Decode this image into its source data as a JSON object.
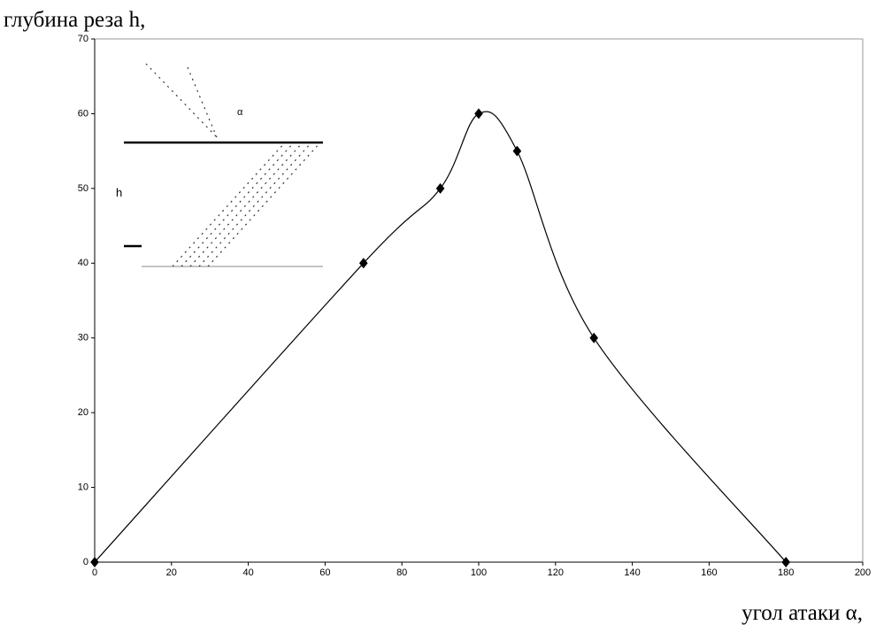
{
  "chart_data": {
    "type": "line",
    "smooth": true,
    "y_label": "глубина реза h,",
    "x_label": "угол атаки α,",
    "x": [
      0,
      70,
      90,
      100,
      110,
      130,
      180
    ],
    "series": [
      {
        "color": "#000000",
        "values": [
          0,
          40,
          50,
          60,
          55,
          30,
          0
        ]
      }
    ],
    "xlim": [
      0,
      200
    ],
    "xticks": [
      0,
      20,
      40,
      60,
      80,
      100,
      120,
      140,
      160,
      180,
      200
    ],
    "ylim": [
      0,
      70
    ],
    "yticks": [
      0,
      10,
      20,
      30,
      40,
      50,
      60,
      70
    ],
    "grid": false,
    "inset": {
      "depth_label": "h",
      "angle_label": "α"
    }
  }
}
